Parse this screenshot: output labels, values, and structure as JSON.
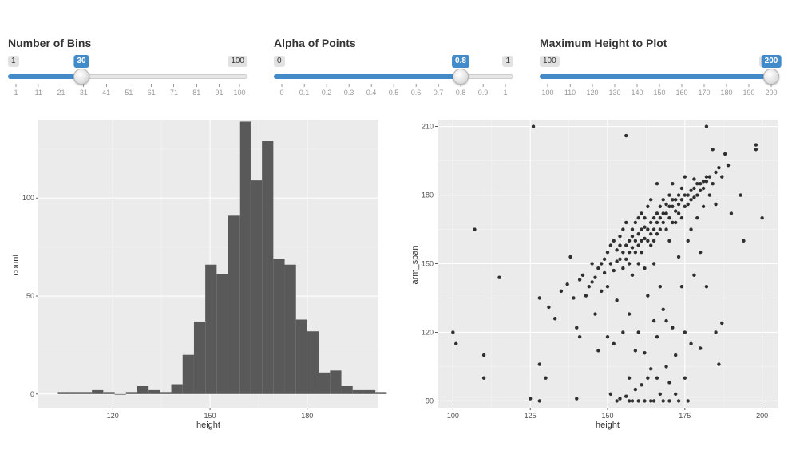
{
  "sliders": [
    {
      "id": "bins",
      "label": "Number of Bins",
      "min": 1,
      "max": 100,
      "value": 30,
      "min_label": "1",
      "max_label": "100",
      "value_label": "30",
      "ticks": [
        "1",
        "11",
        "21",
        "31",
        "41",
        "51",
        "61",
        "71",
        "81",
        "91",
        "100"
      ],
      "tick_values": [
        1,
        11,
        21,
        31,
        41,
        51,
        61,
        71,
        81,
        91,
        100
      ]
    },
    {
      "id": "alpha",
      "label": "Alpha of Points",
      "min": 0,
      "max": 1,
      "value": 0.8,
      "min_label": "0",
      "max_label": "1",
      "value_label": "0.8",
      "ticks": [
        "0",
        "0.1",
        "0.2",
        "0.3",
        "0.4",
        "0.5",
        "0.6",
        "0.7",
        "0.8",
        "0.9",
        "1"
      ],
      "tick_values": [
        0,
        0.1,
        0.2,
        0.3,
        0.4,
        0.5,
        0.6,
        0.7,
        0.8,
        0.9,
        1
      ]
    },
    {
      "id": "maxheight",
      "label": "Maximum Height to Plot",
      "min": 100,
      "max": 200,
      "value": 200,
      "min_label": "100",
      "max_label": "200",
      "value_label": "200",
      "ticks": [
        "100",
        "110",
        "120",
        "130",
        "140",
        "150",
        "160",
        "170",
        "180",
        "190",
        "200"
      ],
      "tick_values": [
        100,
        110,
        120,
        130,
        140,
        150,
        160,
        170,
        180,
        190,
        200
      ]
    }
  ],
  "colors": {
    "accent": "#428bca",
    "panel": "#ebebeb",
    "bar": "#595959",
    "point": "#000000"
  },
  "chart_data": [
    {
      "type": "bar",
      "title": "",
      "xlabel": "height",
      "ylabel": "count",
      "xlim": [
        97,
        202
      ],
      "ylim": [
        -7,
        140
      ],
      "x_ticks": [
        120,
        150,
        180
      ],
      "y_ticks": [
        0,
        50,
        100
      ],
      "grid": true,
      "bin_width": 3.5,
      "bins": [
        {
          "x": 104.8,
          "count": 1
        },
        {
          "x": 108.3,
          "count": 1
        },
        {
          "x": 111.8,
          "count": 1
        },
        {
          "x": 115.3,
          "count": 2
        },
        {
          "x": 118.8,
          "count": 1
        },
        {
          "x": 122.3,
          "count": 0
        },
        {
          "x": 125.8,
          "count": 1
        },
        {
          "x": 129.3,
          "count": 4
        },
        {
          "x": 132.8,
          "count": 2
        },
        {
          "x": 136.3,
          "count": 1
        },
        {
          "x": 139.8,
          "count": 5
        },
        {
          "x": 143.3,
          "count": 20
        },
        {
          "x": 146.8,
          "count": 37
        },
        {
          "x": 150.3,
          "count": 66
        },
        {
          "x": 153.8,
          "count": 61
        },
        {
          "x": 157.3,
          "count": 91
        },
        {
          "x": 160.8,
          "count": 139
        },
        {
          "x": 164.3,
          "count": 109
        },
        {
          "x": 167.8,
          "count": 129
        },
        {
          "x": 171.3,
          "count": 69
        },
        {
          "x": 174.8,
          "count": 66
        },
        {
          "x": 178.3,
          "count": 38
        },
        {
          "x": 181.8,
          "count": 32
        },
        {
          "x": 185.3,
          "count": 11
        },
        {
          "x": 188.8,
          "count": 12
        },
        {
          "x": 192.3,
          "count": 4
        },
        {
          "x": 195.8,
          "count": 2
        },
        {
          "x": 199.3,
          "count": 2
        },
        {
          "x": 202.8,
          "count": 1
        }
      ]
    },
    {
      "type": "scatter",
      "title": "",
      "xlabel": "height",
      "ylabel": "arm_span",
      "xlim": [
        95,
        205
      ],
      "ylim": [
        87,
        213
      ],
      "x_ticks": [
        100,
        125,
        150,
        175,
        200
      ],
      "y_ticks": [
        90,
        120,
        150,
        180,
        210
      ],
      "grid": true,
      "alpha": 0.8,
      "points": [
        [
          100,
          120
        ],
        [
          101,
          115
        ],
        [
          107,
          165
        ],
        [
          110,
          110
        ],
        [
          110,
          100
        ],
        [
          115,
          144
        ],
        [
          125,
          91
        ],
        [
          126,
          210
        ],
        [
          128,
          106
        ],
        [
          128,
          90
        ],
        [
          128,
          135
        ],
        [
          130,
          100
        ],
        [
          131,
          131
        ],
        [
          133,
          126
        ],
        [
          135,
          138
        ],
        [
          137,
          141
        ],
        [
          138,
          153
        ],
        [
          139,
          135
        ],
        [
          140,
          122
        ],
        [
          140,
          91
        ],
        [
          141,
          118
        ],
        [
          141,
          143
        ],
        [
          142,
          145
        ],
        [
          143,
          136
        ],
        [
          144,
          140
        ],
        [
          145,
          142
        ],
        [
          145,
          150
        ],
        [
          146,
          144
        ],
        [
          146,
          128
        ],
        [
          147,
          148
        ],
        [
          147,
          112
        ],
        [
          148,
          150
        ],
        [
          148,
          138
        ],
        [
          149,
          152
        ],
        [
          149,
          146
        ],
        [
          150,
          155
        ],
        [
          150,
          140
        ],
        [
          150,
          118
        ],
        [
          151,
          150
        ],
        [
          151,
          158
        ],
        [
          151,
          93
        ],
        [
          152,
          160
        ],
        [
          152,
          147
        ],
        [
          152,
          115
        ],
        [
          153,
          156
        ],
        [
          153,
          151
        ],
        [
          153,
          134
        ],
        [
          153,
          90
        ],
        [
          154,
          152
        ],
        [
          154,
          162
        ],
        [
          154,
          158
        ],
        [
          154,
          91
        ],
        [
          155,
          155
        ],
        [
          155,
          148
        ],
        [
          155,
          165
        ],
        [
          155,
          120
        ],
        [
          156,
          158
        ],
        [
          156,
          152
        ],
        [
          156,
          168
        ],
        [
          156,
          92
        ],
        [
          156,
          206
        ],
        [
          157,
          160
        ],
        [
          157,
          155
        ],
        [
          157,
          150
        ],
        [
          157,
          128
        ],
        [
          157,
          100
        ],
        [
          157,
          90
        ],
        [
          158,
          162
        ],
        [
          158,
          157
        ],
        [
          158,
          165
        ],
        [
          158,
          145
        ],
        [
          158,
          90
        ],
        [
          159,
          160
        ],
        [
          159,
          168
        ],
        [
          159,
          155
        ],
        [
          159,
          112
        ],
        [
          159,
          95
        ],
        [
          160,
          163
        ],
        [
          160,
          158
        ],
        [
          160,
          170
        ],
        [
          160,
          150
        ],
        [
          160,
          120
        ],
        [
          160,
          90
        ],
        [
          161,
          165
        ],
        [
          161,
          160
        ],
        [
          161,
          155
        ],
        [
          161,
          172
        ],
        [
          161,
          97
        ],
        [
          162,
          166
        ],
        [
          162,
          161
        ],
        [
          162,
          170
        ],
        [
          162,
          148
        ],
        [
          162,
          111
        ],
        [
          162,
          90
        ],
        [
          163,
          165
        ],
        [
          163,
          160
        ],
        [
          163,
          175
        ],
        [
          163,
          136
        ],
        [
          163,
          100
        ],
        [
          164,
          168
        ],
        [
          164,
          163
        ],
        [
          164,
          158
        ],
        [
          164,
          178
        ],
        [
          164,
          104
        ],
        [
          164,
          90
        ],
        [
          165,
          170
        ],
        [
          165,
          165
        ],
        [
          165,
          160
        ],
        [
          165,
          150
        ],
        [
          165,
          125
        ],
        [
          165,
          90
        ],
        [
          166,
          168
        ],
        [
          166,
          172
        ],
        [
          166,
          163
        ],
        [
          166,
          185
        ],
        [
          166,
          118
        ],
        [
          166,
          100
        ],
        [
          167,
          170
        ],
        [
          167,
          175
        ],
        [
          167,
          165
        ],
        [
          167,
          140
        ],
        [
          167,
          93
        ],
        [
          168,
          172
        ],
        [
          168,
          168
        ],
        [
          168,
          178
        ],
        [
          168,
          130
        ],
        [
          168,
          90
        ],
        [
          169,
          172
        ],
        [
          169,
          176
        ],
        [
          169,
          165
        ],
        [
          169,
          125
        ],
        [
          169,
          105
        ],
        [
          170,
          175
        ],
        [
          170,
          170
        ],
        [
          170,
          180
        ],
        [
          170,
          160
        ],
        [
          170,
          98
        ],
        [
          170,
          90
        ],
        [
          171,
          175
        ],
        [
          171,
          178
        ],
        [
          171,
          168
        ],
        [
          171,
          185
        ],
        [
          171,
          122
        ],
        [
          172,
          178
        ],
        [
          172,
          173
        ],
        [
          172,
          168
        ],
        [
          172,
          110
        ],
        [
          172,
          93
        ],
        [
          173,
          176
        ],
        [
          173,
          180
        ],
        [
          173,
          172
        ],
        [
          173,
          153
        ],
        [
          173,
          90
        ],
        [
          174,
          178
        ],
        [
          174,
          183
        ],
        [
          174,
          170
        ],
        [
          174,
          140
        ],
        [
          175,
          180
        ],
        [
          175,
          175
        ],
        [
          175,
          188
        ],
        [
          175,
          100
        ],
        [
          175,
          120
        ],
        [
          176,
          180
        ],
        [
          176,
          176
        ],
        [
          176,
          160
        ],
        [
          176,
          90
        ],
        [
          177,
          182
        ],
        [
          177,
          178
        ],
        [
          177,
          165
        ],
        [
          177,
          115
        ],
        [
          178,
          183
        ],
        [
          178,
          179
        ],
        [
          178,
          187
        ],
        [
          178,
          145
        ],
        [
          179,
          185
        ],
        [
          179,
          180
        ],
        [
          179,
          170
        ],
        [
          180,
          185
        ],
        [
          180,
          182
        ],
        [
          180,
          155
        ],
        [
          180,
          113
        ],
        [
          181,
          186
        ],
        [
          181,
          183
        ],
        [
          181,
          175
        ],
        [
          182,
          186
        ],
        [
          182,
          188
        ],
        [
          182,
          140
        ],
        [
          182,
          210
        ],
        [
          183,
          188
        ],
        [
          183,
          180
        ],
        [
          184,
          185
        ],
        [
          184,
          200
        ],
        [
          185,
          190
        ],
        [
          185,
          176
        ],
        [
          185,
          120
        ],
        [
          186,
          192
        ],
        [
          186,
          106
        ],
        [
          187,
          124
        ],
        [
          187,
          188
        ],
        [
          188,
          198
        ],
        [
          189,
          193
        ],
        [
          190,
          172
        ],
        [
          193,
          180
        ],
        [
          194,
          160
        ],
        [
          198,
          200
        ],
        [
          198,
          202
        ],
        [
          200,
          170
        ]
      ]
    }
  ]
}
